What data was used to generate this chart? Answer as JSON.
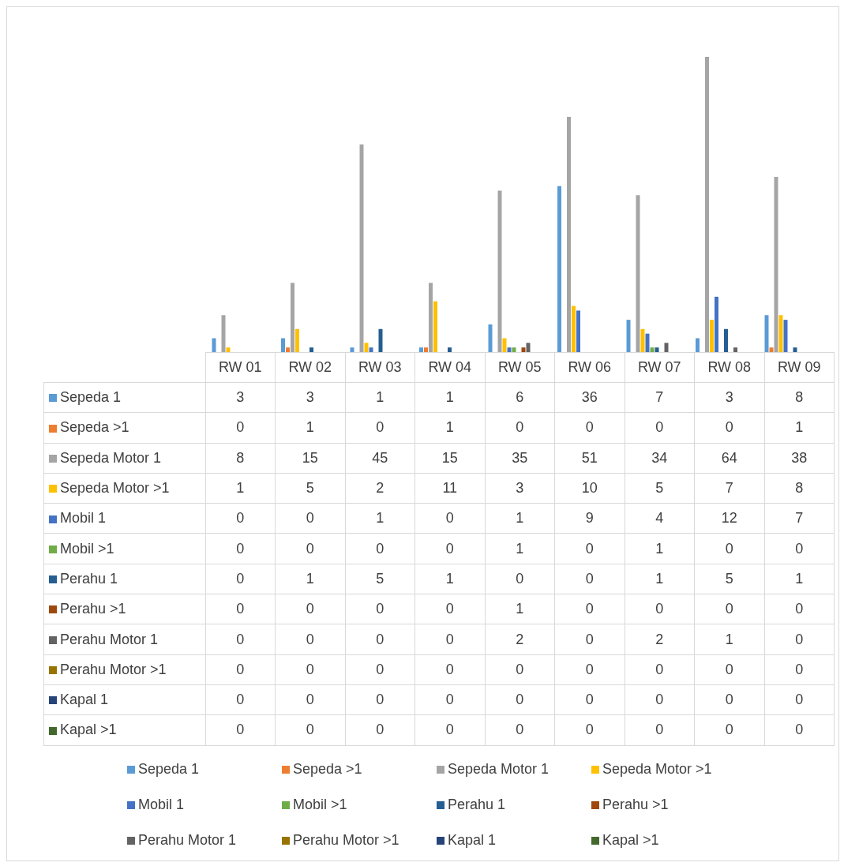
{
  "chart_data": {
    "type": "bar",
    "categories": [
      "RW 01",
      "RW 02",
      "RW 03",
      "RW 04",
      "RW 05",
      "RW 06",
      "RW 07",
      "RW 08",
      "RW 09"
    ],
    "series": [
      {
        "name": "Sepeda 1",
        "color": "#5b9bd5",
        "values": [
          3,
          3,
          1,
          1,
          6,
          36,
          7,
          3,
          8
        ]
      },
      {
        "name": "Sepeda >1",
        "color": "#ed7d31",
        "values": [
          0,
          1,
          0,
          1,
          0,
          0,
          0,
          0,
          1
        ]
      },
      {
        "name": "Sepeda Motor 1",
        "color": "#a5a5a5",
        "values": [
          8,
          15,
          45,
          15,
          35,
          51,
          34,
          64,
          38
        ]
      },
      {
        "name": "Sepeda Motor >1",
        "color": "#ffc000",
        "values": [
          1,
          5,
          2,
          11,
          3,
          10,
          5,
          7,
          8
        ]
      },
      {
        "name": "Mobil 1",
        "color": "#4472c4",
        "values": [
          0,
          0,
          1,
          0,
          1,
          9,
          4,
          12,
          7
        ]
      },
      {
        "name": "Mobil >1",
        "color": "#70ad47",
        "values": [
          0,
          0,
          0,
          0,
          1,
          0,
          1,
          0,
          0
        ]
      },
      {
        "name": "Perahu 1",
        "color": "#255e91",
        "values": [
          0,
          1,
          5,
          1,
          0,
          0,
          1,
          5,
          1
        ]
      },
      {
        "name": "Perahu >1",
        "color": "#9e480e",
        "values": [
          0,
          0,
          0,
          0,
          1,
          0,
          0,
          0,
          0
        ]
      },
      {
        "name": "Perahu Motor 1",
        "color": "#636363",
        "values": [
          0,
          0,
          0,
          0,
          2,
          0,
          2,
          1,
          0
        ]
      },
      {
        "name": "Perahu Motor >1",
        "color": "#997300",
        "values": [
          0,
          0,
          0,
          0,
          0,
          0,
          0,
          0,
          0
        ]
      },
      {
        "name": "Kapal 1",
        "color": "#264478",
        "values": [
          0,
          0,
          0,
          0,
          0,
          0,
          0,
          0,
          0
        ]
      },
      {
        "name": "Kapal >1",
        "color": "#43682b",
        "values": [
          0,
          0,
          0,
          0,
          0,
          0,
          0,
          0,
          0
        ]
      }
    ],
    "data_labels": true,
    "legend": "bottom"
  }
}
